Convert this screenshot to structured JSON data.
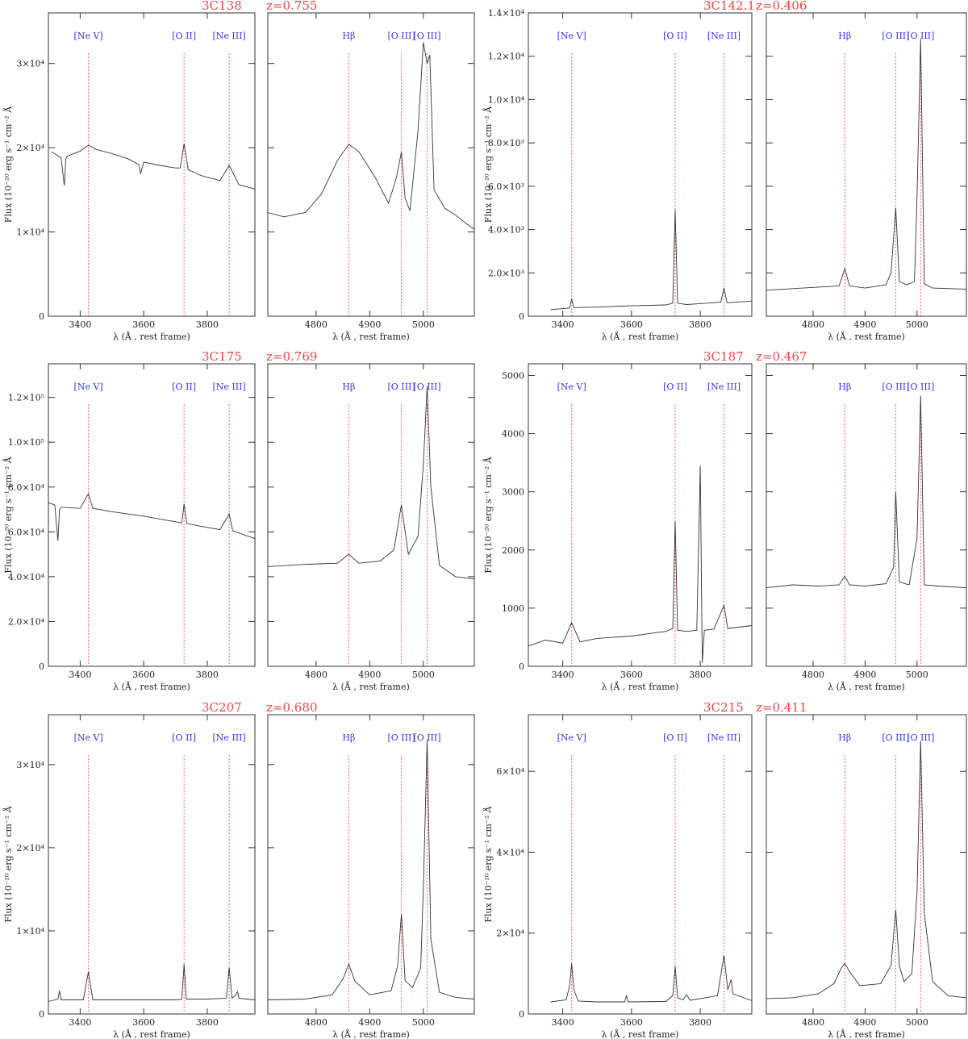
{
  "chart_data": [
    {
      "type": "line",
      "object": "3C138",
      "redshift": "z=0.755",
      "ylabel": "Flux (10⁻²⁰ erg s⁻¹ cm⁻² Å",
      "ylim": [
        0,
        36000
      ],
      "yticks": [
        0,
        10000,
        20000,
        30000
      ],
      "ytick_labels": [
        "0",
        "1×10⁴",
        "2×10⁴",
        "3×10⁴"
      ],
      "panels": [
        {
          "xlabel": "λ (Å , rest frame)",
          "xlim": [
            3300,
            3950
          ],
          "xticks": [
            3400,
            3600,
            3800
          ],
          "lines": [
            {
              "label": "[Ne V]",
              "x": 3426
            },
            {
              "label": "[O II]",
              "x": 3727
            },
            {
              "label": "[Ne III]",
              "x": 3869
            }
          ],
          "x": [
            3310,
            3340,
            3350,
            3355,
            3360,
            3400,
            3426,
            3450,
            3500,
            3550,
            3585,
            3590,
            3600,
            3650,
            3700,
            3715,
            3727,
            3740,
            3780,
            3840,
            3869,
            3900,
            3950
          ],
          "y": [
            19500,
            18800,
            15500,
            18700,
            19000,
            19600,
            20300,
            19800,
            19300,
            18700,
            18000,
            16900,
            18300,
            17900,
            17600,
            17600,
            20500,
            17400,
            16700,
            16100,
            17900,
            15600,
            15100
          ]
        },
        {
          "xlabel": "λ (Å , rest frame)",
          "xlim": [
            4710,
            5095
          ],
          "xticks": [
            4800,
            4900,
            5000
          ],
          "lines": [
            {
              "label": "Hβ",
              "x": 4861
            },
            {
              "label": "[O III]",
              "x": 4959
            },
            {
              "label": "[O III]",
              "x": 5007
            }
          ],
          "x": [
            4710,
            4740,
            4780,
            4810,
            4840,
            4861,
            4880,
            4910,
            4935,
            4950,
            4959,
            4966,
            4975,
            4990,
            5000,
            5007,
            5012,
            5020,
            5040,
            5060,
            5080,
            5095
          ],
          "y": [
            12300,
            11800,
            12300,
            14500,
            18500,
            20400,
            19500,
            16500,
            13400,
            16500,
            19500,
            14000,
            12500,
            22000,
            32500,
            30000,
            31000,
            15000,
            12800,
            12000,
            11000,
            10300
          ]
        }
      ]
    },
    {
      "type": "line",
      "object": "3C142.1",
      "redshift": "z=0.406",
      "ylabel": "Flux (10⁻²⁰ erg s⁻¹ cm⁻² Å",
      "ylim": [
        0,
        14000
      ],
      "yticks": [
        0,
        2000,
        4000,
        6000,
        8000,
        10000,
        12000,
        14000
      ],
      "ytick_labels": [
        "0",
        "2.0×10³",
        "4.0×10³",
        "6.0×10³",
        "8.0×10³",
        "1.0×10⁴",
        "1.2×10⁴",
        "1.4×10⁴"
      ],
      "panels": [
        {
          "xlabel": "λ (Å , rest frame)",
          "xlim": [
            3300,
            3950
          ],
          "xticks": [
            3400,
            3600,
            3800
          ],
          "lines": [
            {
              "label": "[Ne V]",
              "x": 3426
            },
            {
              "label": "[O II]",
              "x": 3727
            },
            {
              "label": "[Ne III]",
              "x": 3869
            }
          ],
          "x": [
            3365,
            3400,
            3420,
            3426,
            3432,
            3500,
            3600,
            3700,
            3720,
            3727,
            3734,
            3760,
            3800,
            3860,
            3869,
            3878,
            3950
          ],
          "y": [
            300,
            350,
            380,
            800,
            400,
            420,
            480,
            520,
            600,
            4900,
            600,
            540,
            580,
            650,
            1300,
            620,
            700
          ]
        },
        {
          "xlabel": "λ (Å , rest frame)",
          "xlim": [
            4710,
            5095
          ],
          "xticks": [
            4800,
            4900,
            5000
          ],
          "lines": [
            {
              "label": "Hβ",
              "x": 4861
            },
            {
              "label": "[O III]",
              "x": 4959
            },
            {
              "label": "[O III]",
              "x": 5007
            }
          ],
          "x": [
            4710,
            4780,
            4850,
            4861,
            4870,
            4900,
            4940,
            4950,
            4959,
            4966,
            4980,
            4995,
            5000,
            5007,
            5014,
            5030,
            5095
          ],
          "y": [
            1200,
            1300,
            1400,
            2200,
            1400,
            1300,
            1450,
            2000,
            5000,
            1600,
            1450,
            1600,
            5500,
            12800,
            1500,
            1300,
            1250
          ]
        }
      ]
    },
    {
      "type": "line",
      "object": "3C175",
      "redshift": "z=0.769",
      "ylabel": "Flux (10⁻²⁰ erg s⁻¹ cm⁻² Å",
      "ylim": [
        0,
        135000
      ],
      "yticks": [
        0,
        20000,
        40000,
        60000,
        80000,
        100000,
        120000
      ],
      "ytick_labels": [
        "0",
        "2.0×10⁴",
        "4.0×10⁴",
        "6.0×10⁴",
        "8.0×10⁴",
        "1.0×10⁵",
        "1.2×10⁵"
      ],
      "panels": [
        {
          "xlabel": "λ (Å , rest frame)",
          "xlim": [
            3300,
            3950
          ],
          "xticks": [
            3400,
            3600,
            3800
          ],
          "lines": [
            {
              "label": "[Ne V]",
              "x": 3426
            },
            {
              "label": "[O II]",
              "x": 3727
            },
            {
              "label": "[Ne III]",
              "x": 3869
            }
          ],
          "x": [
            3300,
            3320,
            3330,
            3335,
            3340,
            3400,
            3426,
            3440,
            3500,
            3600,
            3700,
            3720,
            3727,
            3735,
            3780,
            3840,
            3869,
            3880,
            3950
          ],
          "y": [
            73000,
            72000,
            56000,
            70000,
            71000,
            70500,
            77000,
            70500,
            69000,
            67000,
            64500,
            64000,
            72500,
            63800,
            62500,
            61000,
            68000,
            60500,
            57000
          ]
        },
        {
          "xlabel": "λ (Å , rest frame)",
          "xlim": [
            4710,
            5095
          ],
          "xticks": [
            4800,
            4900,
            5000
          ],
          "lines": [
            {
              "label": "Hβ",
              "x": 4861
            },
            {
              "label": "[O III]",
              "x": 4959
            },
            {
              "label": "[O III]",
              "x": 5007
            }
          ],
          "x": [
            4710,
            4780,
            4840,
            4861,
            4880,
            4920,
            4945,
            4959,
            4972,
            4990,
            5000,
            5007,
            5014,
            5030,
            5060,
            5095
          ],
          "y": [
            44500,
            45500,
            46000,
            50000,
            46000,
            47000,
            52000,
            72000,
            50000,
            58000,
            90000,
            125000,
            80000,
            45000,
            40000,
            39000
          ]
        }
      ]
    },
    {
      "type": "line",
      "object": "3C187",
      "redshift": "z=0.467",
      "ylabel": "Flux (10⁻²⁰ erg s⁻¹ cm⁻² Å",
      "ylim": [
        0,
        5200
      ],
      "yticks": [
        0,
        1000,
        2000,
        3000,
        4000,
        5000
      ],
      "ytick_labels": [
        "0",
        "1000",
        "2000",
        "3000",
        "4000",
        "5000"
      ],
      "panels": [
        {
          "xlabel": "λ (Å , rest frame)",
          "xlim": [
            3300,
            3950
          ],
          "xticks": [
            3400,
            3600,
            3800
          ],
          "lines": [
            {
              "label": "[Ne V]",
              "x": 3426
            },
            {
              "label": "[O II]",
              "x": 3727
            },
            {
              "label": "[Ne III]",
              "x": 3869
            }
          ],
          "x": [
            3300,
            3350,
            3400,
            3426,
            3450,
            3500,
            3550,
            3600,
            3650,
            3700,
            3720,
            3727,
            3734,
            3760,
            3790,
            3800,
            3806,
            3812,
            3840,
            3869,
            3880,
            3950
          ],
          "y": [
            350,
            450,
            400,
            750,
            420,
            480,
            500,
            520,
            560,
            600,
            650,
            2500,
            620,
            600,
            620,
            3450,
            60,
            620,
            640,
            1050,
            650,
            700
          ]
        },
        {
          "xlabel": "λ (Å , rest frame)",
          "xlim": [
            4710,
            5095
          ],
          "xticks": [
            4800,
            4900,
            5000
          ],
          "lines": [
            {
              "label": "Hβ",
              "x": 4861
            },
            {
              "label": "[O III]",
              "x": 4959
            },
            {
              "label": "[O III]",
              "x": 5007
            }
          ],
          "x": [
            4710,
            4760,
            4810,
            4850,
            4861,
            4870,
            4900,
            4940,
            4955,
            4959,
            4966,
            4985,
            5000,
            5007,
            5014,
            5040,
            5095
          ],
          "y": [
            1350,
            1400,
            1380,
            1400,
            1550,
            1400,
            1380,
            1420,
            1700,
            3000,
            1450,
            1400,
            2200,
            4650,
            1400,
            1380,
            1350
          ]
        }
      ]
    },
    {
      "type": "line",
      "object": "3C207",
      "redshift": "z=0.680",
      "ylabel": "Flux (10⁻²⁰ erg s⁻¹ cm⁻² Å",
      "ylim": [
        0,
        36000
      ],
      "yticks": [
        0,
        10000,
        20000,
        30000
      ],
      "ytick_labels": [
        "0",
        "1×10⁴",
        "2×10⁴",
        "3×10⁴"
      ],
      "panels": [
        {
          "xlabel": "λ (Å , rest frame)",
          "xlim": [
            3300,
            3950
          ],
          "xticks": [
            3400,
            3600,
            3800
          ],
          "lines": [
            {
              "label": "[Ne V]",
              "x": 3426
            },
            {
              "label": "[O II]",
              "x": 3727
            },
            {
              "label": "[Ne III]",
              "x": 3869
            }
          ],
          "x": [
            3300,
            3330,
            3335,
            3340,
            3410,
            3426,
            3440,
            3500,
            3600,
            3700,
            3720,
            3727,
            3734,
            3800,
            3860,
            3869,
            3878,
            3890,
            3895,
            3900,
            3950
          ],
          "y": [
            1500,
            1800,
            2800,
            1700,
            1700,
            5100,
            1700,
            1700,
            1700,
            1700,
            1750,
            6000,
            1800,
            1800,
            1900,
            5600,
            1900,
            2300,
            2700,
            1900,
            1700
          ]
        },
        {
          "xlabel": "λ (Å , rest frame)",
          "xlim": [
            4710,
            5095
          ],
          "xticks": [
            4800,
            4900,
            5000
          ],
          "lines": [
            {
              "label": "Hβ",
              "x": 4861
            },
            {
              "label": "[O III]",
              "x": 4959
            },
            {
              "label": "[O III]",
              "x": 5007
            }
          ],
          "x": [
            4710,
            4780,
            4830,
            4850,
            4861,
            4872,
            4900,
            4940,
            4952,
            4959,
            4966,
            4980,
            4995,
            5000,
            5007,
            5014,
            5030,
            5060,
            5095
          ],
          "y": [
            1700,
            1800,
            2300,
            4200,
            6000,
            4000,
            2300,
            2800,
            5800,
            12000,
            4000,
            3200,
            5500,
            15000,
            33000,
            9000,
            2600,
            2000,
            1800
          ]
        }
      ]
    },
    {
      "type": "line",
      "object": "3C215",
      "redshift": "z=0.411",
      "ylabel": "Flux (10⁻²⁰ erg s⁻¹ cm⁻² Å",
      "ylim": [
        0,
        74000
      ],
      "yticks": [
        0,
        20000,
        40000,
        60000
      ],
      "ytick_labels": [
        "0",
        "2×10⁴",
        "4×10⁴",
        "6×10⁴"
      ],
      "panels": [
        {
          "xlabel": "λ (Å , rest frame)",
          "xlim": [
            3300,
            3950
          ],
          "xticks": [
            3400,
            3600,
            3800
          ],
          "lines": [
            {
              "label": "[Ne V]",
              "x": 3426
            },
            {
              "label": "[O II]",
              "x": 3727
            },
            {
              "label": "[Ne III]",
              "x": 3869
            }
          ],
          "x": [
            3365,
            3410,
            3420,
            3426,
            3432,
            3445,
            3500,
            3580,
            3585,
            3590,
            3700,
            3720,
            3727,
            3734,
            3750,
            3760,
            3770,
            3850,
            3869,
            3880,
            3890,
            3895,
            3950
          ],
          "y": [
            3000,
            3500,
            7000,
            12500,
            6000,
            3200,
            3000,
            3000,
            4500,
            3000,
            3100,
            4500,
            11800,
            4000,
            3500,
            4800,
            3400,
            4500,
            14500,
            6000,
            8500,
            5000,
            3300
          ]
        },
        {
          "xlabel": "λ (Å , rest frame)",
          "xlim": [
            4710,
            5095
          ],
          "xticks": [
            4800,
            4900,
            5000
          ],
          "lines": [
            {
              "label": "Hβ",
              "x": 4861
            },
            {
              "label": "[O III]",
              "x": 4959
            },
            {
              "label": "[O III]",
              "x": 5007
            }
          ],
          "x": [
            4710,
            4760,
            4810,
            4840,
            4855,
            4861,
            4870,
            4890,
            4930,
            4950,
            4959,
            4966,
            4975,
            4990,
            5000,
            5007,
            5014,
            5030,
            5060,
            5095
          ],
          "y": [
            3800,
            4000,
            5000,
            7500,
            11500,
            12500,
            10500,
            7000,
            7500,
            12000,
            25800,
            12000,
            8000,
            10000,
            30000,
            67500,
            25000,
            8000,
            4500,
            4000
          ]
        }
      ]
    }
  ]
}
